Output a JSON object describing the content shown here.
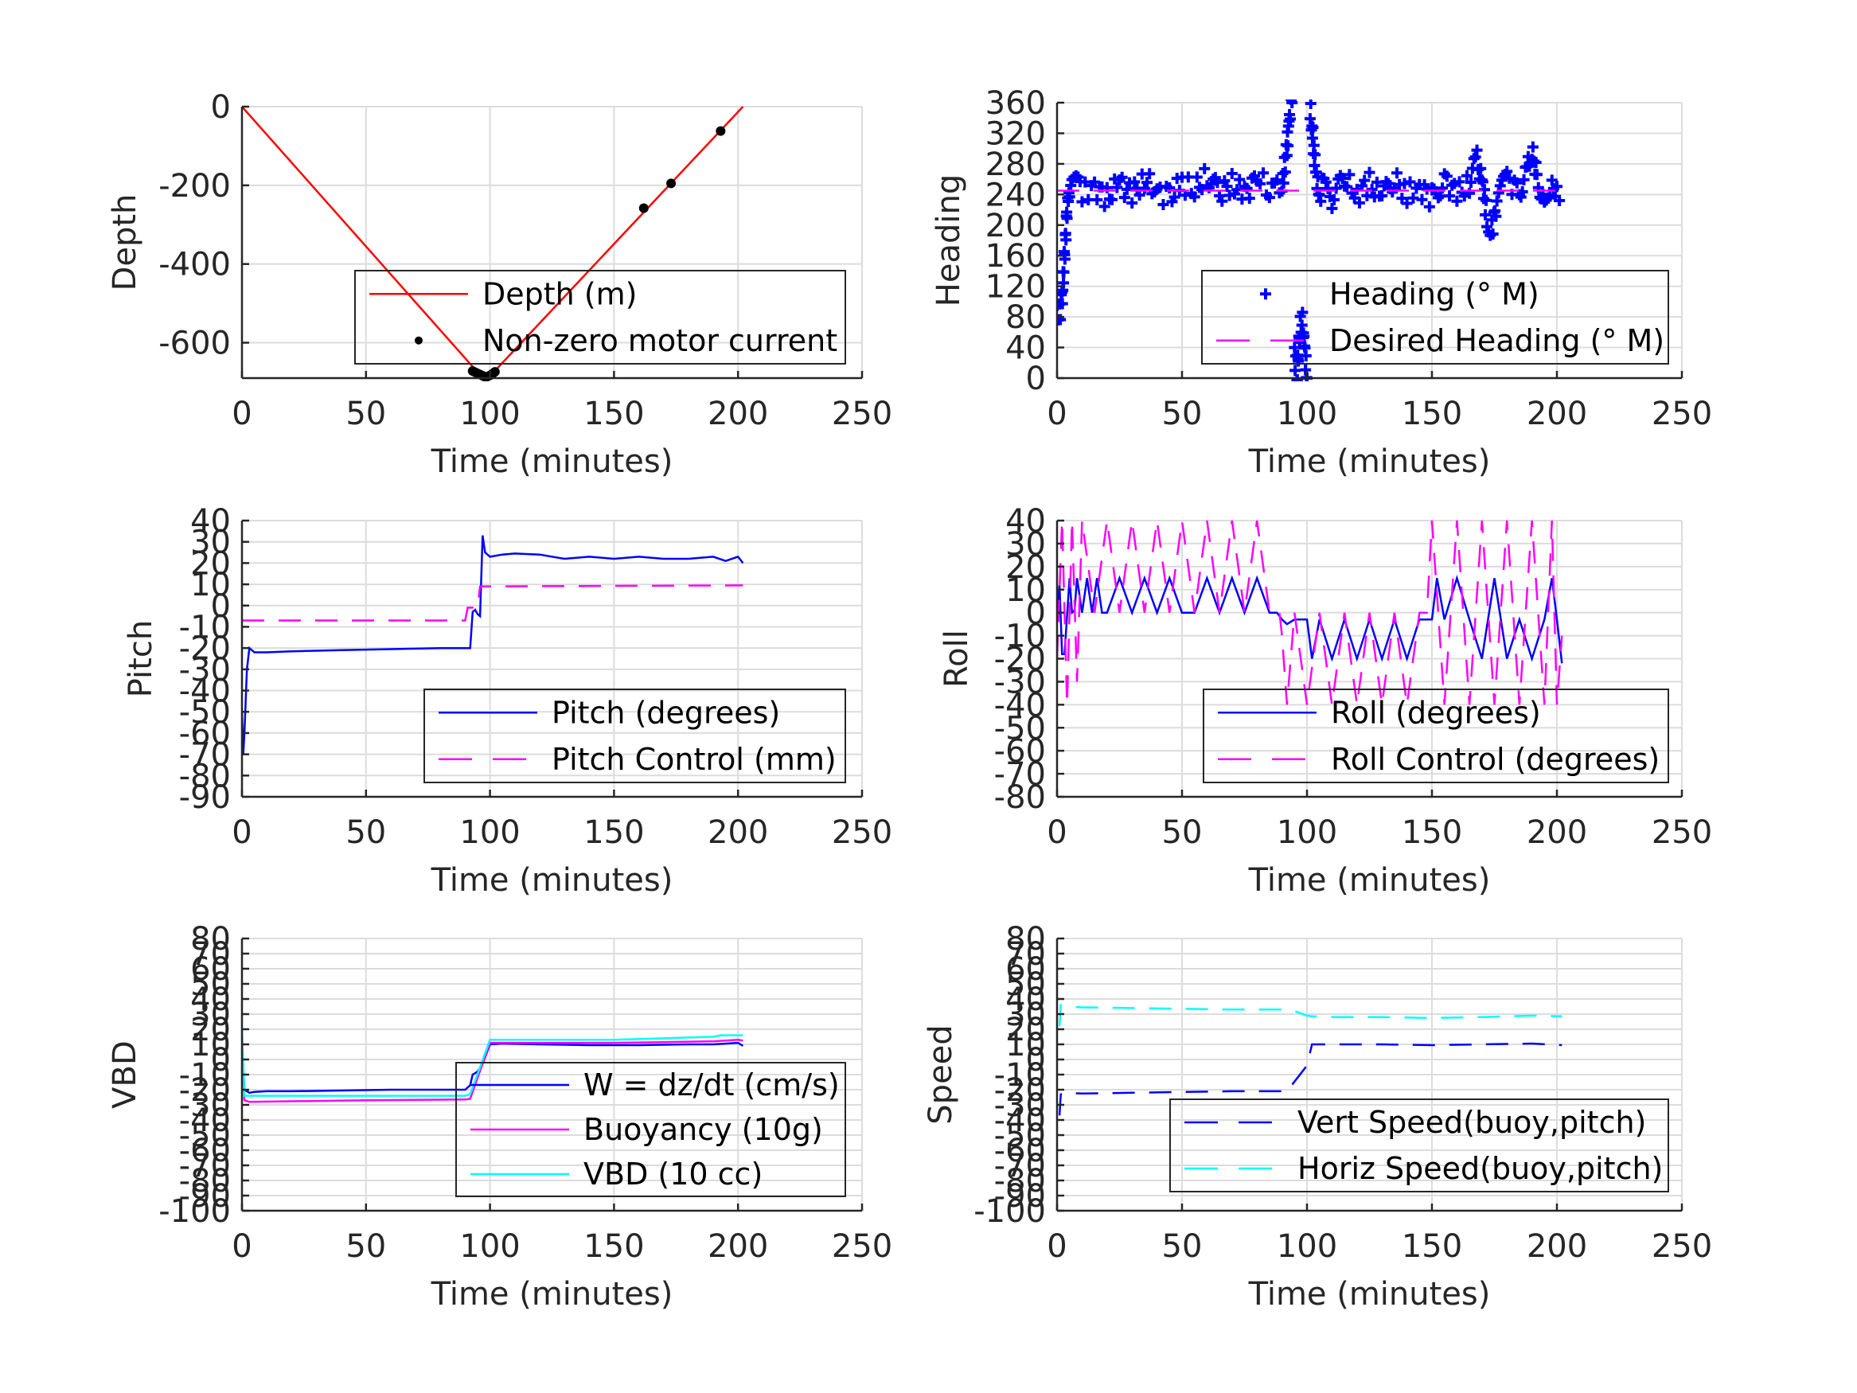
{
  "chart_data": [
    {
      "id": "depth",
      "type": "line",
      "xlabel": "Time (minutes)",
      "ylabel": "Depth",
      "xlim": [
        0,
        250
      ],
      "ylim": [
        -690,
        0
      ],
      "xticks": [
        0,
        50,
        100,
        150,
        200,
        250
      ],
      "yticks": [
        -600,
        -400,
        -200,
        0
      ],
      "grid": true,
      "legend_position": "bottom-right",
      "series": [
        {
          "name": "Depth (m)",
          "style": "solid",
          "color": "#ff0000",
          "x": [
            0,
            95,
            98,
            101,
            202
          ],
          "y": [
            0,
            -675,
            -690,
            -678,
            0
          ]
        },
        {
          "name": "Non-zero motor current",
          "style": "dot",
          "color": "#000000",
          "x": [
            93,
            94,
            95,
            96,
            97,
            98,
            99,
            100,
            101,
            102,
            162,
            173,
            193
          ],
          "y": [
            -672,
            -675,
            -678,
            -681,
            -684,
            -687,
            -686,
            -683,
            -679,
            -674,
            -258,
            -195,
            -62
          ]
        }
      ]
    },
    {
      "id": "heading",
      "type": "scatter",
      "xlabel": "Time (minutes)",
      "ylabel": "Heading",
      "xlim": [
        0,
        250
      ],
      "ylim": [
        0,
        360
      ],
      "xticks": [
        0,
        50,
        100,
        150,
        200,
        250
      ],
      "yticks": [
        0,
        40,
        80,
        120,
        160,
        200,
        240,
        280,
        320,
        360
      ],
      "grid": true,
      "legend_position": "bottom-right",
      "series": [
        {
          "name": "Heading (° M)",
          "style": "plus",
          "color": "#0000ff",
          "x": [
            0,
            1,
            2,
            3,
            4,
            5,
            6,
            10,
            15,
            20,
            25,
            30,
            35,
            40,
            45,
            50,
            55,
            60,
            65,
            70,
            75,
            80,
            85,
            88,
            90,
            92,
            93,
            94,
            95,
            96,
            97,
            98,
            99,
            100,
            101,
            102,
            103,
            104,
            105,
            106,
            110,
            115,
            120,
            125,
            130,
            135,
            140,
            145,
            150,
            155,
            160,
            165,
            168,
            170,
            172,
            174,
            176,
            180,
            185,
            188,
            190,
            192,
            195,
            198,
            200,
            202
          ],
          "y": [
            95,
            85,
            100,
            160,
            220,
            250,
            262,
            240,
            250,
            235,
            255,
            240,
            260,
            245,
            235,
            255,
            245,
            265,
            240,
            255,
            240,
            262,
            250,
            245,
            250,
            300,
            340,
            360,
            30,
            0,
            60,
            80,
            40,
            0,
            360,
            330,
            290,
            260,
            240,
            250,
            235,
            260,
            240,
            255,
            235,
            260,
            240,
            250,
            235,
            260,
            240,
            255,
            285,
            260,
            210,
            195,
            230,
            260,
            245,
            270,
            300,
            260,
            235,
            255,
            240,
            250
          ]
        },
        {
          "name": "Desired Heading (° M)",
          "style": "dashed",
          "color": "#ff00ff",
          "x": [
            0,
            97,
            103,
            202
          ],
          "y": [
            245,
            245,
            245,
            245
          ]
        }
      ]
    },
    {
      "id": "pitch",
      "type": "line",
      "xlabel": "Time (minutes)",
      "ylabel": "Pitch",
      "xlim": [
        0,
        250
      ],
      "ylim": [
        -90,
        40
      ],
      "xticks": [
        0,
        50,
        100,
        150,
        200,
        250
      ],
      "yticks": [
        -90,
        -80,
        -70,
        -60,
        -50,
        -40,
        -30,
        -20,
        -10,
        0,
        10,
        20,
        30,
        40
      ],
      "grid": true,
      "legend_position": "bottom-right",
      "series": [
        {
          "name": "Pitch (degrees)",
          "style": "solid",
          "color": "#0000ff",
          "x": [
            0,
            0.5,
            1,
            2,
            3,
            5,
            10,
            20,
            40,
            60,
            80,
            90,
            92,
            93,
            94,
            95,
            96,
            97,
            98,
            100,
            105,
            110,
            120,
            130,
            140,
            150,
            160,
            170,
            180,
            190,
            195,
            200,
            202
          ],
          "y": [
            -50,
            -70,
            -60,
            -30,
            -20,
            -22,
            -22,
            -21.5,
            -21,
            -20.5,
            -20,
            -20,
            -20,
            -3,
            -2,
            -4,
            -5,
            33,
            25,
            23,
            24,
            24.5,
            24,
            22,
            23,
            22,
            23,
            22,
            22,
            23,
            21,
            23,
            20
          ]
        },
        {
          "name": "Pitch Control (mm)",
          "style": "dashed",
          "color": "#ff00ff",
          "x": [
            0,
            90,
            91,
            95,
            96,
            202
          ],
          "y": [
            -7,
            -7,
            -1,
            -1,
            9,
            9.5
          ]
        }
      ]
    },
    {
      "id": "roll",
      "type": "line",
      "xlabel": "Time (minutes)",
      "ylabel": "Roll",
      "xlim": [
        0,
        250
      ],
      "ylim": [
        -80,
        40
      ],
      "xticks": [
        0,
        50,
        100,
        150,
        200,
        250
      ],
      "yticks": [
        -80,
        -70,
        -60,
        -50,
        -40,
        -30,
        -20,
        -10,
        0,
        10,
        20,
        30,
        40
      ],
      "grid": true,
      "legend_position": "bottom-right",
      "series": [
        {
          "name": "Roll (degrees)",
          "style": "solid",
          "color": "#0000ff",
          "x": [
            0,
            1,
            2,
            3,
            5,
            6,
            7,
            8,
            10,
            12,
            14,
            16,
            18,
            20,
            25,
            30,
            35,
            40,
            45,
            50,
            55,
            60,
            65,
            70,
            75,
            80,
            85,
            88,
            90,
            92,
            95,
            100,
            102,
            105,
            110,
            115,
            120,
            125,
            130,
            135,
            140,
            145,
            150,
            152,
            155,
            160,
            165,
            170,
            175,
            180,
            185,
            190,
            195,
            198,
            200,
            202
          ],
          "y": [
            0,
            12,
            -18,
            -18,
            15,
            0,
            1,
            15,
            0,
            15,
            0,
            15,
            0,
            0,
            15,
            0,
            15,
            0,
            15,
            0,
            0,
            15,
            0,
            15,
            0,
            15,
            0,
            0,
            -3,
            -5,
            -3,
            -3,
            -20,
            -3,
            -20,
            -3,
            -20,
            -3,
            -20,
            -3,
            -20,
            -3,
            -3,
            15,
            -3,
            15,
            -3,
            -20,
            15,
            -20,
            -3,
            -20,
            -3,
            15,
            -3,
            -22
          ]
        },
        {
          "name": "Roll Control (degrees)",
          "style": "dashed",
          "color": "#ff00ff",
          "x": [
            0,
            2,
            4,
            6,
            8,
            10,
            15,
            20,
            25,
            30,
            35,
            40,
            45,
            50,
            55,
            60,
            65,
            70,
            75,
            80,
            85,
            89,
            90,
            92,
            95,
            100,
            105,
            110,
            115,
            120,
            125,
            130,
            135,
            140,
            145,
            148,
            150,
            155,
            160,
            165,
            170,
            175,
            180,
            185,
            190,
            195,
            198,
            200,
            202
          ],
          "y": [
            -20,
            40,
            -40,
            40,
            -30,
            40,
            0,
            40,
            0,
            40,
            0,
            40,
            0,
            40,
            0,
            40,
            0,
            40,
            0,
            40,
            0,
            0,
            -10,
            -40,
            0,
            -40,
            0,
            -40,
            0,
            -40,
            0,
            -40,
            0,
            -40,
            0,
            0,
            40,
            -40,
            40,
            -40,
            40,
            -40,
            40,
            -40,
            40,
            -40,
            40,
            -40,
            -10
          ]
        }
      ]
    },
    {
      "id": "vbd",
      "type": "line",
      "xlabel": "Time (minutes)",
      "ylabel": "VBD",
      "xlim": [
        0,
        250
      ],
      "ylim": [
        -100,
        80
      ],
      "xticks": [
        0,
        50,
        100,
        150,
        200,
        250
      ],
      "yticks": [
        -100,
        -90,
        -80,
        -70,
        -60,
        -50,
        -40,
        -30,
        -20,
        -10,
        0,
        10,
        20,
        30,
        40,
        50,
        60,
        70,
        80
      ],
      "grid": true,
      "legend_position": "bottom-right",
      "series": [
        {
          "name": "W = dz/dt (cm/s)",
          "style": "solid",
          "color": "#0000ff",
          "x": [
            0,
            1,
            3,
            5,
            10,
            20,
            40,
            60,
            80,
            90,
            92,
            93,
            95,
            97,
            100,
            105,
            120,
            140,
            160,
            180,
            190,
            200,
            202
          ],
          "y": [
            10,
            -20,
            -22,
            -21.5,
            -21,
            -21,
            -20.5,
            -20,
            -20,
            -20,
            -17,
            -10,
            -8,
            -3,
            10,
            10.5,
            10,
            9.5,
            9.5,
            10,
            10,
            11,
            9
          ]
        },
        {
          "name": "Buoyancy (10g)",
          "style": "solid",
          "color": "#ff00ff",
          "x": [
            0,
            1,
            3,
            50,
            90,
            92,
            100,
            102,
            150,
            170,
            190,
            200,
            202
          ],
          "y": [
            15,
            -27,
            -28,
            -27,
            -26.5,
            -26,
            11,
            11,
            11,
            11.5,
            12,
            13,
            12.5
          ]
        },
        {
          "name": "VBD (10 cc)",
          "style": "solid",
          "color": "#00ffff",
          "x": [
            0,
            1,
            3,
            50,
            90,
            92,
            100,
            102,
            150,
            170,
            190,
            193,
            202
          ],
          "y": [
            20,
            -24,
            -24,
            -24,
            -24,
            -23,
            13,
            13,
            13,
            14,
            15,
            16,
            16
          ]
        }
      ]
    },
    {
      "id": "speed",
      "type": "line",
      "xlabel": "Time (minutes)",
      "ylabel": "Speed",
      "xlim": [
        0,
        250
      ],
      "ylim": [
        -100,
        80
      ],
      "xticks": [
        0,
        50,
        100,
        150,
        200,
        250
      ],
      "yticks": [
        -100,
        -90,
        -80,
        -70,
        -60,
        -50,
        -40,
        -30,
        -20,
        -10,
        0,
        10,
        20,
        30,
        40,
        50,
        60,
        70,
        80
      ],
      "grid": true,
      "legend_position": "bottom-right",
      "series": [
        {
          "name": "Vert Speed(buoy,pitch)",
          "style": "dashed",
          "color": "#0000ff",
          "x": [
            1,
            1.5,
            3,
            10,
            30,
            50,
            70,
            90,
            92,
            100,
            102,
            110,
            130,
            150,
            170,
            190,
            202
          ],
          "y": [
            -37,
            -23,
            -22,
            -22.5,
            -22,
            -21.5,
            -21,
            -21,
            -21,
            -4,
            10,
            10,
            10,
            9.5,
            10,
            10.5,
            9.5
          ]
        },
        {
          "name": "Horiz Speed(buoy,pitch)",
          "style": "dashed",
          "color": "#00ffff",
          "x": [
            1,
            1.5,
            3,
            10,
            30,
            50,
            70,
            90,
            95,
            100,
            102,
            110,
            130,
            150,
            170,
            190,
            202
          ],
          "y": [
            22,
            36,
            35,
            34.5,
            34,
            33.5,
            33,
            33,
            32,
            29,
            28.5,
            28,
            28,
            27.5,
            28,
            29,
            28.5
          ]
        }
      ]
    }
  ]
}
